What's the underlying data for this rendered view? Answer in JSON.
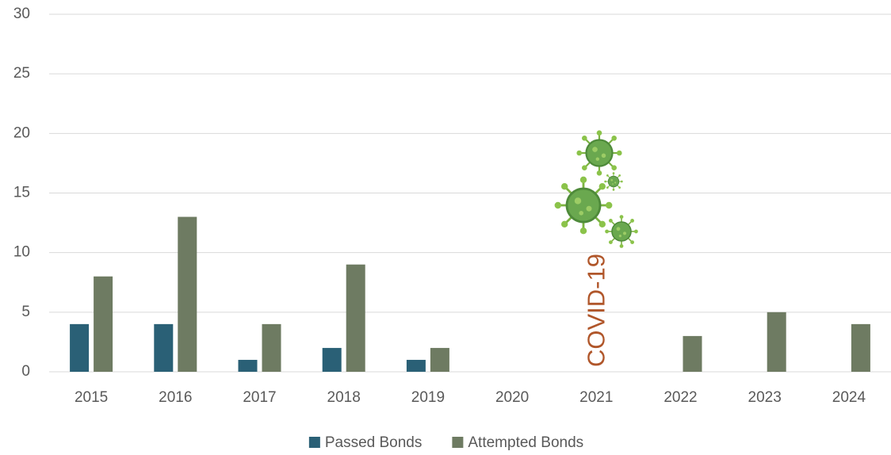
{
  "chart_data": {
    "type": "bar",
    "categories": [
      "2015",
      "2016",
      "2017",
      "2018",
      "2019",
      "2020",
      "2021",
      "2022",
      "2023",
      "2024"
    ],
    "series": [
      {
        "name": "Passed Bonds",
        "color": "#2a6076",
        "values": [
          4,
          4,
          1,
          2,
          1,
          0,
          0,
          0,
          0,
          0
        ]
      },
      {
        "name": "Attempted Bonds",
        "color": "#6e7b62",
        "values": [
          8,
          13,
          4,
          9,
          2,
          0,
          0,
          3,
          5,
          4
        ]
      }
    ],
    "ylim": [
      0,
      30
    ],
    "yticks": [
      0,
      5,
      10,
      15,
      20,
      25,
      30
    ],
    "grid": true,
    "annotation": {
      "text": "COVID-19",
      "category": "2021",
      "color": "#b0562a"
    },
    "legend": "bottom"
  }
}
